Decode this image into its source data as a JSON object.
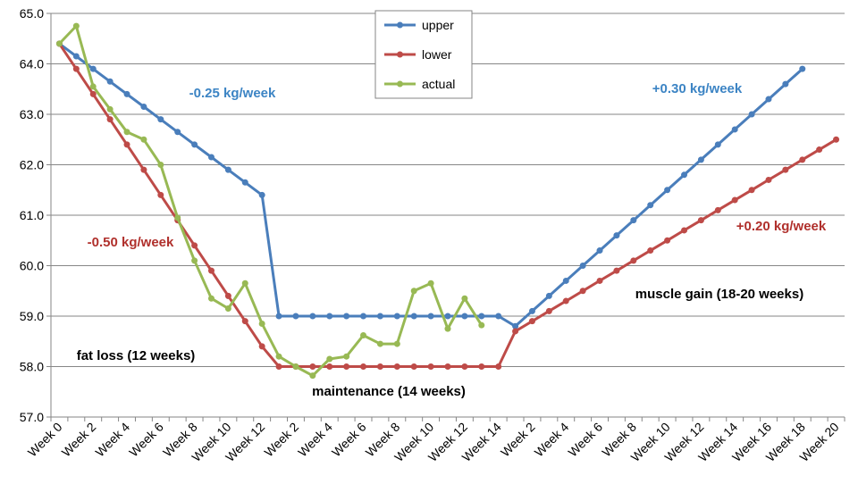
{
  "chart_data": {
    "type": "line",
    "categories": [
      "Week 0",
      null,
      "Week 2",
      null,
      "Week 4",
      null,
      "Week 6",
      null,
      "Week 8",
      null,
      "Week 10",
      null,
      "Week 12",
      null,
      "Week 2",
      null,
      "Week 4",
      null,
      "Week 6",
      null,
      "Week 8",
      null,
      "Week 10",
      null,
      "Week 12",
      null,
      "Week 14",
      null,
      "Week 2",
      null,
      "Week 4",
      null,
      "Week 6",
      null,
      "Week 8",
      null,
      "Week 10",
      null,
      "Week 12",
      null,
      "Week 14",
      null,
      "Week 16",
      null,
      "Week 18",
      null,
      "Week 20"
    ],
    "series": [
      {
        "name": "upper",
        "color": "#4a7ebb",
        "values": [
          64.4,
          64.15,
          63.9,
          63.65,
          63.4,
          63.15,
          62.9,
          62.65,
          62.4,
          62.15,
          61.9,
          61.65,
          61.4,
          59.0,
          59.0,
          59.0,
          59.0,
          59.0,
          59.0,
          59.0,
          59.0,
          59.0,
          59.0,
          59.0,
          59.0,
          59.0,
          59.0,
          58.8,
          59.1,
          59.4,
          59.7,
          60.0,
          60.3,
          60.6,
          60.9,
          61.2,
          61.5,
          61.8,
          62.1,
          62.4,
          62.7,
          63.0,
          63.3,
          63.6,
          63.9,
          null,
          null
        ]
      },
      {
        "name": "lower",
        "color": "#be4b48",
        "values": [
          64.4,
          63.9,
          63.4,
          62.9,
          62.4,
          61.9,
          61.4,
          60.9,
          60.4,
          59.9,
          59.4,
          58.9,
          58.4,
          58.0,
          58.0,
          58.0,
          58.0,
          58.0,
          58.0,
          58.0,
          58.0,
          58.0,
          58.0,
          58.0,
          58.0,
          58.0,
          58.0,
          58.7,
          58.9,
          59.1,
          59.3,
          59.5,
          59.7,
          59.9,
          60.1,
          60.3,
          60.5,
          60.7,
          60.9,
          61.1,
          61.3,
          61.5,
          61.7,
          61.9,
          62.1,
          62.3,
          62.5
        ]
      },
      {
        "name": "actual",
        "color": "#98b954",
        "values": [
          64.4,
          64.75,
          63.55,
          63.1,
          62.65,
          62.5,
          62.0,
          60.95,
          60.1,
          59.35,
          59.15,
          59.65,
          58.85,
          58.2,
          58.0,
          57.82,
          58.15,
          58.2,
          58.62,
          58.45,
          58.45,
          59.5,
          59.65,
          58.75,
          59.35,
          58.82,
          null,
          null,
          null,
          null,
          null,
          null,
          null,
          null,
          null,
          null,
          null,
          null,
          null,
          null,
          null,
          null,
          null,
          null,
          null,
          null,
          null
        ]
      }
    ],
    "ylim": [
      57,
      65
    ],
    "yticks": [
      {
        "value": 57,
        "label": "57.0"
      },
      {
        "value": 58,
        "label": "58.0"
      },
      {
        "value": 59,
        "label": "59.0"
      },
      {
        "value": 60,
        "label": "60.0"
      },
      {
        "value": 61,
        "label": "61.0"
      },
      {
        "value": 62,
        "label": "62.0"
      },
      {
        "value": 63,
        "label": "63.0"
      },
      {
        "value": 64,
        "label": "64.0"
      },
      {
        "value": 65,
        "label": "65.0"
      }
    ],
    "grid": true,
    "legend": "top",
    "annotations": [
      {
        "text": "-0.25 kg/week",
        "color": "#3c84c4"
      },
      {
        "text": "-0.50 kg/week",
        "color": "#b0302c"
      },
      {
        "text": "fat loss (12 weeks)",
        "color": "#000000"
      },
      {
        "text": "maintenance (14 weeks)",
        "color": "#000000"
      },
      {
        "text": "+0.30 kg/week",
        "color": "#3c84c4"
      },
      {
        "text": "+0.20 kg/week",
        "color": "#b0302c"
      },
      {
        "text": "muscle gain (18-20 weeks)",
        "color": "#000000"
      }
    ]
  }
}
